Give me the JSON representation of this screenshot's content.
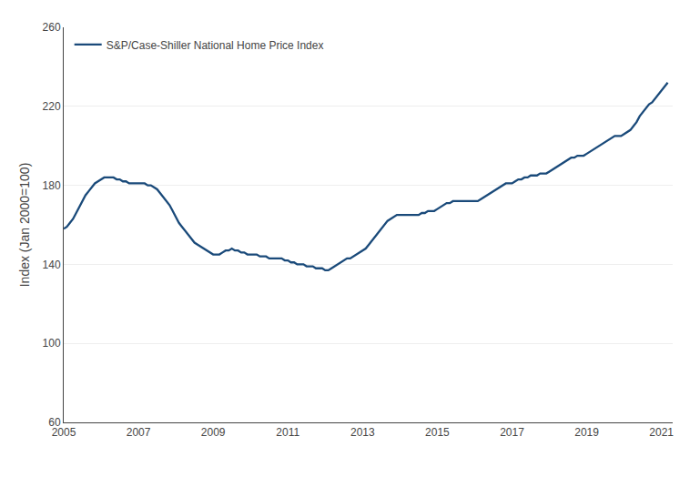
{
  "chart_data": {
    "type": "line",
    "ylabel": "Index (Jan 2000=100)",
    "x": [
      2005.0,
      2005.083,
      2005.167,
      2005.25,
      2005.333,
      2005.417,
      2005.5,
      2005.583,
      2005.667,
      2005.75,
      2005.833,
      2005.917,
      2006.0,
      2006.083,
      2006.167,
      2006.25,
      2006.333,
      2006.417,
      2006.5,
      2006.583,
      2006.667,
      2006.75,
      2006.833,
      2006.917,
      2007.0,
      2007.083,
      2007.167,
      2007.25,
      2007.333,
      2007.417,
      2007.5,
      2007.583,
      2007.667,
      2007.75,
      2007.833,
      2007.917,
      2008.0,
      2008.083,
      2008.167,
      2008.25,
      2008.333,
      2008.417,
      2008.5,
      2008.583,
      2008.667,
      2008.75,
      2008.833,
      2008.917,
      2009.0,
      2009.083,
      2009.167,
      2009.25,
      2009.333,
      2009.417,
      2009.5,
      2009.583,
      2009.667,
      2009.75,
      2009.833,
      2009.917,
      2010.0,
      2010.083,
      2010.167,
      2010.25,
      2010.333,
      2010.417,
      2010.5,
      2010.583,
      2010.667,
      2010.75,
      2010.833,
      2010.917,
      2011.0,
      2011.083,
      2011.167,
      2011.25,
      2011.333,
      2011.417,
      2011.5,
      2011.583,
      2011.667,
      2011.75,
      2011.833,
      2011.917,
      2012.0,
      2012.083,
      2012.167,
      2012.25,
      2012.333,
      2012.417,
      2012.5,
      2012.583,
      2012.667,
      2012.75,
      2012.833,
      2012.917,
      2013.0,
      2013.083,
      2013.167,
      2013.25,
      2013.333,
      2013.417,
      2013.5,
      2013.583,
      2013.667,
      2013.75,
      2013.833,
      2013.917,
      2014.0,
      2014.083,
      2014.167,
      2014.25,
      2014.333,
      2014.417,
      2014.5,
      2014.583,
      2014.667,
      2014.75,
      2014.833,
      2014.917,
      2015.0,
      2015.083,
      2015.167,
      2015.25,
      2015.333,
      2015.417,
      2015.5,
      2015.583,
      2015.667,
      2015.75,
      2015.833,
      2015.917,
      2016.0,
      2016.083,
      2016.167,
      2016.25,
      2016.333,
      2016.417,
      2016.5,
      2016.583,
      2016.667,
      2016.75,
      2016.833,
      2016.917,
      2017.0,
      2017.083,
      2017.167,
      2017.25,
      2017.333,
      2017.417,
      2017.5,
      2017.583,
      2017.667,
      2017.75,
      2017.833,
      2017.917,
      2018.0,
      2018.083,
      2018.167,
      2018.25,
      2018.333,
      2018.417,
      2018.5,
      2018.583,
      2018.667,
      2018.75,
      2018.833,
      2018.917,
      2019.0,
      2019.083,
      2019.167,
      2019.25,
      2019.333,
      2019.417,
      2019.5,
      2019.583,
      2019.667,
      2019.75,
      2019.833,
      2019.917,
      2020.0,
      2020.083,
      2020.167,
      2020.25,
      2020.333,
      2020.417,
      2020.5,
      2020.583,
      2020.667,
      2020.75,
      2020.833,
      2020.917,
      2021.0,
      2021.083,
      2021.167
    ],
    "series": [
      {
        "name": "S&P/Case-Shiller National Home Price Index",
        "color": "#1a4a7a",
        "values": [
          158,
          159,
          161,
          163,
          166,
          169,
          172,
          175,
          177,
          179,
          181,
          182,
          183,
          184,
          184,
          184,
          184,
          183,
          183,
          182,
          182,
          181,
          181,
          181,
          181,
          181,
          181,
          180,
          180,
          179,
          178,
          176,
          174,
          172,
          170,
          167,
          164,
          161,
          159,
          157,
          155,
          153,
          151,
          150,
          149,
          148,
          147,
          146,
          145,
          145,
          145,
          146,
          147,
          147,
          148,
          147,
          147,
          146,
          146,
          145,
          145,
          145,
          145,
          144,
          144,
          144,
          143,
          143,
          143,
          143,
          143,
          142,
          142,
          141,
          141,
          140,
          140,
          140,
          139,
          139,
          139,
          138,
          138,
          138,
          137,
          137,
          138,
          139,
          140,
          141,
          142,
          143,
          143,
          144,
          145,
          146,
          147,
          148,
          150,
          152,
          154,
          156,
          158,
          160,
          162,
          163,
          164,
          165,
          165,
          165,
          165,
          165,
          165,
          165,
          165,
          166,
          166,
          167,
          167,
          167,
          168,
          169,
          170,
          171,
          171,
          172,
          172,
          172,
          172,
          172,
          172,
          172,
          172,
          172,
          173,
          174,
          175,
          176,
          177,
          178,
          179,
          180,
          181,
          181,
          181,
          182,
          183,
          183,
          184,
          184,
          185,
          185,
          185,
          186,
          186,
          186,
          187,
          188,
          189,
          190,
          191,
          192,
          193,
          194,
          194,
          195,
          195,
          195,
          196,
          197,
          198,
          199,
          200,
          201,
          202,
          203,
          204,
          205,
          205,
          205,
          206,
          207,
          208,
          210,
          212,
          215,
          217,
          219,
          221,
          222,
          224,
          226,
          228,
          230,
          232
        ]
      }
    ],
    "xlim": [
      2005,
      2021.3
    ],
    "xticks": [
      2005,
      2007,
      2009,
      2011,
      2013,
      2015,
      2017,
      2019,
      2021
    ],
    "ylim": [
      60,
      260
    ],
    "yticks": [
      60,
      100,
      140,
      180,
      220,
      260
    ],
    "grid": true,
    "legend": "upper left"
  }
}
